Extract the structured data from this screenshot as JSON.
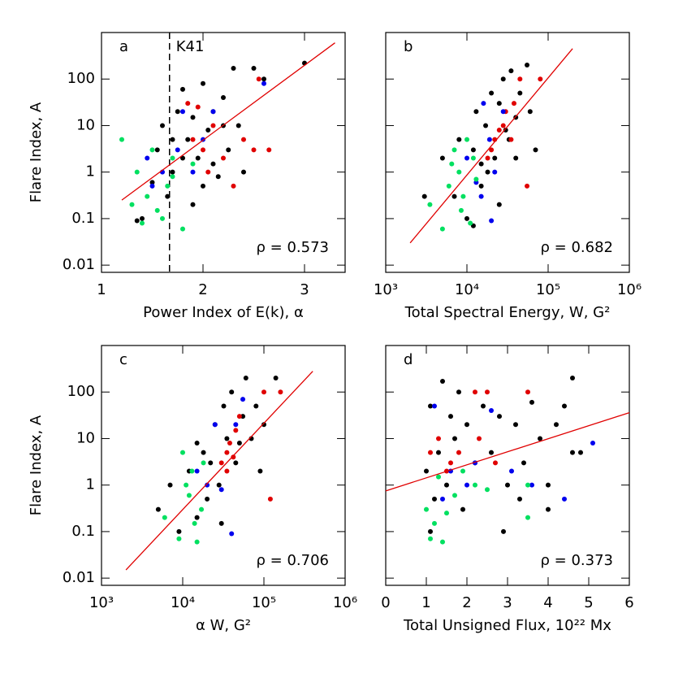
{
  "chart_data": [
    {
      "type": "scatter",
      "label": "a",
      "xlabel": "Power Index of E(k), α",
      "ylabel": "Flare Index, A",
      "annotation": "ρ = 0.573",
      "xlog": false,
      "ylog": true,
      "xlim": [
        1,
        3.4
      ],
      "ylim": [
        0.007,
        1000
      ],
      "xticks": [
        1,
        2,
        3
      ],
      "yticks": [
        0.01,
        0.1,
        1,
        10,
        100
      ],
      "vline": {
        "x": 1.67,
        "label": "K41"
      },
      "fit": {
        "color": "#e00000",
        "x": [
          1.2,
          3.3
        ],
        "y": [
          0.25,
          600
        ]
      },
      "series": [
        {
          "color": "#000000",
          "x": [
            1.35,
            1.4,
            1.5,
            1.55,
            1.6,
            1.65,
            1.7,
            1.75,
            1.8,
            1.85,
            1.9,
            1.95,
            2.0,
            2.05,
            2.1,
            2.15,
            2.2,
            2.25,
            2.3,
            2.35,
            2.4,
            2.5,
            2.0,
            1.9,
            1.8,
            2.2,
            2.6,
            3.0,
            1.7,
            2.1
          ],
          "values": [
            0.09,
            0.1,
            0.6,
            3,
            10,
            0.3,
            1,
            20,
            60,
            5,
            15,
            2,
            80,
            8,
            20,
            0.8,
            40,
            3,
            170,
            10,
            1,
            170,
            0.5,
            0.2,
            2,
            10,
            100,
            220,
            5,
            1.5
          ]
        },
        {
          "color": "#e00000",
          "x": [
            1.85,
            1.9,
            2.0,
            2.1,
            2.2,
            2.3,
            2.4,
            2.5,
            2.55,
            2.65,
            2.05,
            1.95
          ],
          "values": [
            30,
            5,
            3,
            10,
            2,
            0.5,
            5,
            3,
            100,
            3,
            1,
            25
          ]
        },
        {
          "color": "#0000ee",
          "x": [
            1.45,
            1.5,
            1.6,
            1.75,
            1.8,
            1.9,
            2.0,
            2.1,
            2.6
          ],
          "values": [
            2,
            0.5,
            1,
            3,
            20,
            1,
            5,
            20,
            80
          ]
        },
        {
          "color": "#00e060",
          "x": [
            1.2,
            1.3,
            1.35,
            1.4,
            1.45,
            1.5,
            1.55,
            1.6,
            1.65,
            1.7,
            1.8,
            1.9,
            1.7
          ],
          "values": [
            5,
            0.2,
            1,
            0.08,
            0.3,
            3,
            0.15,
            0.1,
            0.5,
            2,
            0.06,
            1.5,
            0.8
          ]
        }
      ]
    },
    {
      "type": "scatter",
      "label": "b",
      "xlabel": "Total Spectral Energy, W, G²",
      "annotation": "ρ = 0.682",
      "xlog": true,
      "ylog": true,
      "xlim": [
        1000,
        1000000
      ],
      "ylim": [
        0.007,
        1000
      ],
      "xticks": [
        {
          "value": 1000,
          "label": "10³"
        },
        {
          "value": 10000,
          "label": "10⁴"
        },
        {
          "value": 100000,
          "label": "10⁵"
        },
        {
          "value": 1000000,
          "label": "10⁶"
        }
      ],
      "yticks": [
        0.01,
        0.1,
        1,
        10,
        100
      ],
      "fit": {
        "color": "#e00000",
        "x": [
          2000,
          200000
        ],
        "y": [
          0.03,
          450
        ]
      },
      "series": [
        {
          "color": "#000000",
          "x": [
            3000,
            5000,
            7000,
            8000,
            10000,
            12000,
            13000,
            15000,
            17000,
            20000,
            22000,
            25000,
            28000,
            30000,
            35000,
            40000,
            45000,
            55000,
            60000,
            12000,
            18000,
            25000,
            33000,
            70000,
            15000,
            40000
          ],
          "values": [
            0.3,
            2,
            0.3,
            5,
            0.1,
            3,
            20,
            0.5,
            10,
            50,
            2,
            30,
            100,
            8,
            150,
            15,
            50,
            200,
            20,
            0.07,
            1,
            0.2,
            5,
            3,
            1.5,
            2
          ]
        },
        {
          "color": "#e00000",
          "x": [
            20000,
            22000,
            25000,
            28000,
            30000,
            35000,
            45000,
            55000,
            80000,
            18000,
            38000
          ],
          "values": [
            3,
            5,
            8,
            10,
            20,
            5,
            100,
            0.5,
            100,
            2,
            30
          ]
        },
        {
          "color": "#0000ee",
          "x": [
            10000,
            13000,
            16000,
            19000,
            22000,
            28000,
            15000,
            20000
          ],
          "values": [
            2,
            0.6,
            30,
            5,
            1,
            20,
            0.3,
            0.09
          ]
        },
        {
          "color": "#00e060",
          "x": [
            3500,
            5000,
            6000,
            7000,
            8000,
            9000,
            10000,
            11000,
            12000,
            13000,
            8500,
            6500
          ],
          "values": [
            0.2,
            0.06,
            0.5,
            3,
            1,
            0.3,
            5,
            0.08,
            2,
            0.7,
            0.15,
            1.5
          ]
        }
      ]
    },
    {
      "type": "scatter",
      "label": "c",
      "xlabel": "α W, G²",
      "ylabel": "Flare Index, A",
      "annotation": "ρ = 0.706",
      "xlog": true,
      "ylog": true,
      "xlim": [
        1000,
        1000000
      ],
      "ylim": [
        0.007,
        1000
      ],
      "xticks": [
        {
          "value": 1000,
          "label": "10³"
        },
        {
          "value": 10000,
          "label": "10⁴"
        },
        {
          "value": 100000,
          "label": "10⁵"
        },
        {
          "value": 1000000,
          "label": "10⁶"
        }
      ],
      "yticks": [
        0.01,
        0.1,
        1,
        10,
        100
      ],
      "fit": {
        "color": "#e00000",
        "x": [
          2000,
          400000
        ],
        "y": [
          0.015,
          280
        ]
      },
      "series": [
        {
          "color": "#000000",
          "x": [
            5000,
            7000,
            9000,
            12000,
            15000,
            18000,
            20000,
            25000,
            28000,
            32000,
            35000,
            40000,
            45000,
            55000,
            60000,
            70000,
            80000,
            100000,
            140000,
            30000,
            22000,
            50000,
            15000,
            90000
          ],
          "values": [
            0.3,
            1,
            0.1,
            2,
            0.2,
            5,
            0.5,
            20,
            1,
            50,
            10,
            100,
            3,
            30,
            200,
            10,
            50,
            20,
            200,
            0.15,
            3,
            8,
            8,
            2
          ]
        },
        {
          "color": "#e00000",
          "x": [
            30000,
            35000,
            38000,
            42000,
            45000,
            50000,
            100000,
            120000,
            160000,
            35000
          ],
          "values": [
            3,
            5,
            8,
            4,
            15,
            30,
            100,
            0.5,
            100,
            2
          ]
        },
        {
          "color": "#0000ee",
          "x": [
            15000,
            20000,
            25000,
            30000,
            40000,
            55000,
            45000
          ],
          "values": [
            2,
            1,
            20,
            0.8,
            0.09,
            70,
            20
          ]
        },
        {
          "color": "#00e060",
          "x": [
            6000,
            9000,
            10000,
            12000,
            13000,
            15000,
            17000,
            11000,
            14000,
            18000
          ],
          "values": [
            0.2,
            0.07,
            5,
            0.6,
            2,
            0.06,
            0.3,
            1,
            0.15,
            3
          ]
        }
      ]
    },
    {
      "type": "scatter",
      "label": "d",
      "xlabel": "Total Unsigned Flux, 10²² Mx",
      "annotation": "ρ = 0.373",
      "xlog": false,
      "ylog": true,
      "xlim": [
        0,
        6
      ],
      "ylim": [
        0.007,
        1000
      ],
      "xticks": [
        0,
        1,
        2,
        3,
        4,
        5,
        6
      ],
      "yticks": [
        0.01,
        0.1,
        1,
        10,
        100
      ],
      "fit": {
        "color": "#e00000",
        "x": [
          0,
          6
        ],
        "y": [
          0.75,
          36
        ]
      },
      "series": [
        {
          "color": "#000000",
          "x": [
            1.0,
            1.1,
            1.2,
            1.3,
            1.4,
            1.5,
            1.6,
            1.7,
            1.8,
            1.9,
            2.0,
            2.2,
            2.4,
            2.6,
            2.8,
            3.0,
            3.2,
            3.4,
            3.6,
            3.8,
            4.0,
            4.2,
            4.4,
            4.6,
            4.8,
            4.0,
            1.1,
            2.9,
            3.3,
            4.6
          ],
          "values": [
            2,
            50,
            0.5,
            5,
            170,
            1,
            30,
            10,
            100,
            0.3,
            20,
            3,
            50,
            5,
            30,
            1,
            20,
            3,
            60,
            10,
            1,
            20,
            50,
            200,
            5,
            0.3,
            0.1,
            0.1,
            0.5,
            5
          ]
        },
        {
          "color": "#e00000",
          "x": [
            1.1,
            1.3,
            1.5,
            1.8,
            2.2,
            2.5,
            2.7,
            3.5,
            1.6,
            2.3
          ],
          "values": [
            5,
            10,
            2,
            5,
            100,
            100,
            3,
            100,
            3,
            10
          ]
        },
        {
          "color": "#0000ee",
          "x": [
            1.2,
            1.6,
            2.0,
            2.2,
            2.6,
            3.1,
            3.6,
            4.4,
            5.1,
            1.4
          ],
          "values": [
            50,
            2,
            1,
            3,
            40,
            2,
            1,
            0.5,
            8,
            0.5
          ]
        },
        {
          "color": "#00e060",
          "x": [
            1.0,
            1.1,
            1.2,
            1.3,
            1.4,
            1.5,
            1.7,
            2.2,
            2.5,
            3.5,
            3.5,
            1.9
          ],
          "values": [
            0.3,
            0.07,
            0.15,
            1.5,
            0.06,
            0.25,
            0.6,
            1,
            0.8,
            0.2,
            1,
            2
          ]
        }
      ]
    }
  ]
}
